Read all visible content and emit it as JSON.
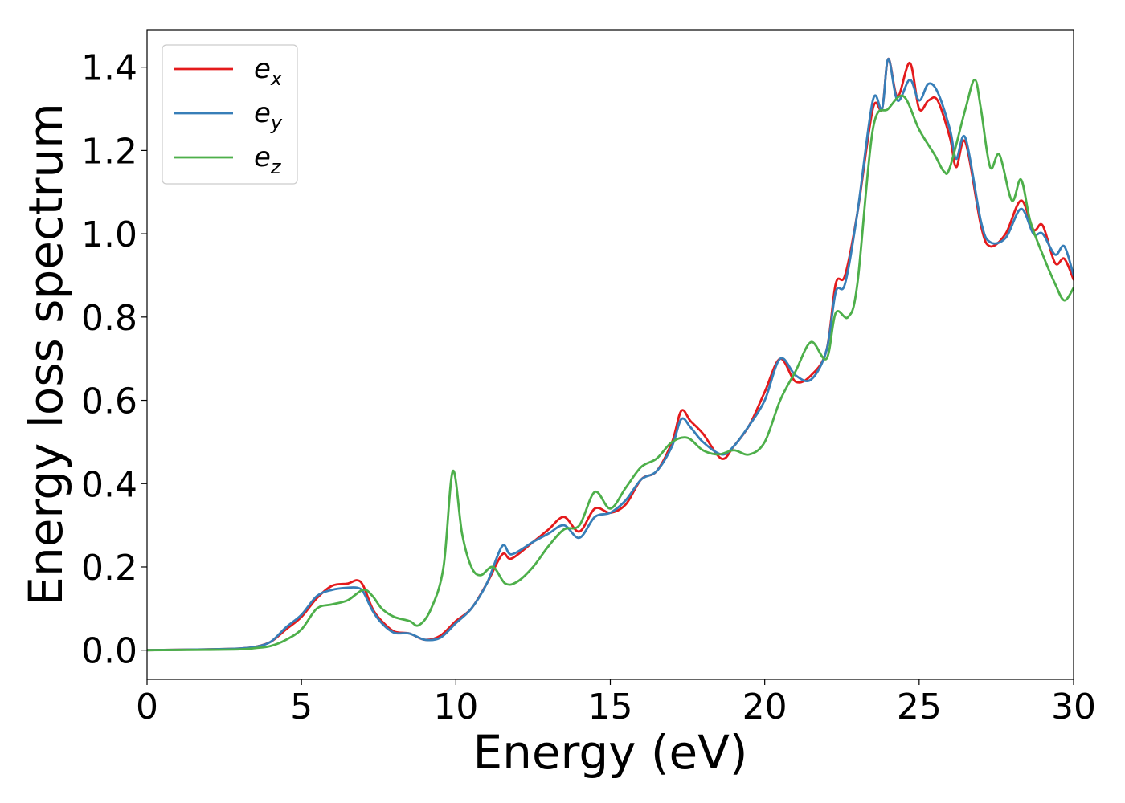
{
  "chart_data": {
    "type": "line",
    "xlabel": "Energy (eV)",
    "ylabel": "Energy loss spectrum",
    "xlim": [
      0,
      30
    ],
    "ylim": [
      -0.07,
      1.49
    ],
    "x_ticks": [
      0,
      5,
      10,
      15,
      20,
      25,
      30
    ],
    "y_ticks": [
      0.0,
      0.2,
      0.4,
      0.6,
      0.8,
      1.0,
      1.2,
      1.4
    ],
    "x_tick_labels": [
      "0",
      "5",
      "10",
      "15",
      "20",
      "25",
      "30"
    ],
    "y_tick_labels": [
      "0.0",
      "0.2",
      "0.4",
      "0.6",
      "0.8",
      "1.0",
      "1.2",
      "1.4"
    ],
    "grid": false,
    "legend_position": "top-left",
    "series": [
      {
        "name": "e_x",
        "legend_base": "e",
        "legend_sub": "x",
        "color": "#e41a1c",
        "x": [
          0,
          2,
          3,
          3.5,
          4,
          4.5,
          5,
          5.5,
          6,
          6.5,
          6.8,
          7,
          7.3,
          7.6,
          8,
          8.5,
          9,
          9.5,
          10,
          10.5,
          11,
          11.5,
          11.8,
          12.5,
          13,
          13.5,
          14,
          14.5,
          15,
          15.5,
          16,
          16.5,
          17,
          17.3,
          17.6,
          18,
          18.6,
          19,
          19.5,
          20,
          20.5,
          21,
          21.5,
          22,
          22.3,
          22.6,
          23,
          23.5,
          23.8,
          24,
          24.3,
          24.7,
          25,
          25.3,
          25.6,
          26,
          26.2,
          26.5,
          27,
          27.3,
          27.8,
          28.3,
          28.7,
          29,
          29.4,
          29.7,
          30
        ],
        "y": [
          0.0,
          0.002,
          0.004,
          0.008,
          0.02,
          0.05,
          0.08,
          0.125,
          0.155,
          0.16,
          0.168,
          0.155,
          0.1,
          0.07,
          0.045,
          0.04,
          0.025,
          0.035,
          0.07,
          0.1,
          0.16,
          0.23,
          0.22,
          0.26,
          0.29,
          0.32,
          0.285,
          0.34,
          0.33,
          0.35,
          0.41,
          0.43,
          0.5,
          0.575,
          0.55,
          0.52,
          0.46,
          0.49,
          0.54,
          0.62,
          0.7,
          0.645,
          0.66,
          0.72,
          0.88,
          0.9,
          1.05,
          1.3,
          1.3,
          1.42,
          1.33,
          1.41,
          1.3,
          1.32,
          1.32,
          1.23,
          1.16,
          1.22,
          1.02,
          0.97,
          1.0,
          1.08,
          1.01,
          1.02,
          0.93,
          0.94,
          0.89
        ]
      },
      {
        "name": "e_y",
        "legend_base": "e",
        "legend_sub": "y",
        "color": "#377eb8",
        "x": [
          0,
          2,
          3,
          3.5,
          4,
          4.5,
          5,
          5.5,
          6,
          6.5,
          6.8,
          7,
          7.3,
          7.6,
          8,
          8.5,
          9,
          9.5,
          10,
          10.5,
          11,
          11.5,
          11.8,
          12.5,
          13,
          13.5,
          14,
          14.5,
          15,
          15.5,
          16,
          16.5,
          17,
          17.3,
          17.6,
          18,
          18.6,
          19,
          19.5,
          20,
          20.5,
          21,
          21.5,
          22,
          22.3,
          22.6,
          23,
          23.5,
          23.8,
          24,
          24.3,
          24.7,
          25,
          25.3,
          25.6,
          26,
          26.2,
          26.5,
          27,
          27.3,
          27.8,
          28.3,
          28.7,
          29,
          29.4,
          29.7,
          30
        ],
        "y": [
          0.0,
          0.002,
          0.004,
          0.008,
          0.02,
          0.055,
          0.085,
          0.13,
          0.145,
          0.15,
          0.15,
          0.14,
          0.095,
          0.065,
          0.042,
          0.04,
          0.025,
          0.03,
          0.065,
          0.1,
          0.16,
          0.25,
          0.23,
          0.26,
          0.28,
          0.3,
          0.27,
          0.32,
          0.33,
          0.36,
          0.41,
          0.43,
          0.49,
          0.555,
          0.535,
          0.5,
          0.47,
          0.49,
          0.54,
          0.6,
          0.7,
          0.66,
          0.65,
          0.72,
          0.86,
          0.88,
          1.05,
          1.32,
          1.3,
          1.42,
          1.32,
          1.37,
          1.32,
          1.36,
          1.34,
          1.25,
          1.18,
          1.23,
          1.03,
          0.98,
          0.99,
          1.06,
          1.0,
          1.0,
          0.95,
          0.97,
          0.9
        ]
      },
      {
        "name": "e_z",
        "legend_base": "e",
        "legend_sub": "z",
        "color": "#4daf4a",
        "x": [
          0,
          2,
          3,
          3.5,
          4,
          4.5,
          5,
          5.5,
          6,
          6.5,
          7,
          7.3,
          7.6,
          8,
          8.5,
          8.8,
          9.2,
          9.6,
          9.9,
          10.2,
          10.5,
          10.8,
          11.2,
          11.6,
          12,
          12.5,
          13,
          13.5,
          14,
          14.5,
          15,
          15.5,
          16,
          16.5,
          17,
          17.5,
          18,
          18.5,
          19,
          19.5,
          20,
          20.5,
          21,
          21.5,
          22,
          22.3,
          22.7,
          23,
          23.5,
          24,
          24.5,
          25,
          25.5,
          25.8,
          26,
          26.5,
          26.8,
          27,
          27.3,
          27.6,
          28,
          28.3,
          28.6,
          29,
          29.4,
          29.7,
          30
        ],
        "y": [
          0.0,
          0.001,
          0.002,
          0.005,
          0.01,
          0.025,
          0.05,
          0.1,
          0.11,
          0.12,
          0.145,
          0.13,
          0.1,
          0.08,
          0.07,
          0.06,
          0.1,
          0.2,
          0.43,
          0.28,
          0.2,
          0.18,
          0.2,
          0.16,
          0.165,
          0.2,
          0.25,
          0.29,
          0.3,
          0.38,
          0.34,
          0.39,
          0.44,
          0.46,
          0.5,
          0.51,
          0.48,
          0.47,
          0.48,
          0.47,
          0.5,
          0.6,
          0.67,
          0.74,
          0.7,
          0.81,
          0.8,
          0.88,
          1.25,
          1.3,
          1.33,
          1.25,
          1.19,
          1.15,
          1.16,
          1.3,
          1.37,
          1.3,
          1.16,
          1.19,
          1.08,
          1.13,
          1.03,
          0.95,
          0.88,
          0.84,
          0.87
        ]
      }
    ]
  }
}
